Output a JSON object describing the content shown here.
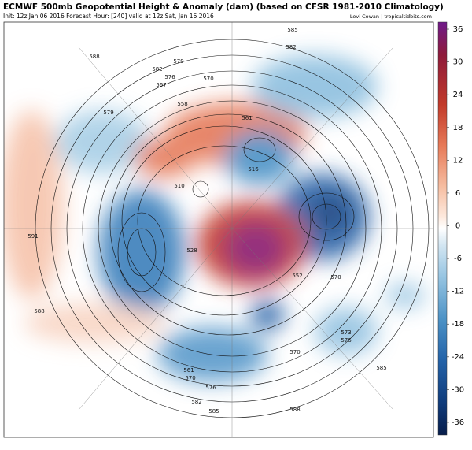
{
  "header": {
    "title": "ECMWF 500mb Geopotential Height & Anomaly (dam) (based on CFSR 1981-2010 Climatology)",
    "info": "Init: 12z Jan 06 2016   Forecast Hour: [240]   valid at 12z Sat, Jan 16 2016",
    "credit": "Levi Cowan | tropicaltidbits.com"
  },
  "colorbar": {
    "ticks": [
      36,
      30,
      24,
      18,
      12,
      6,
      0,
      -6,
      -12,
      -18,
      -24,
      -30,
      -36
    ]
  },
  "map": {
    "contour_labels": [
      585,
      582,
      588,
      579,
      582,
      576,
      570,
      567,
      558,
      561,
      579,
      591,
      588,
      510,
      516,
      528,
      552,
      570,
      573,
      576,
      570,
      585,
      576,
      582,
      585,
      588,
      561,
      570
    ]
  }
}
